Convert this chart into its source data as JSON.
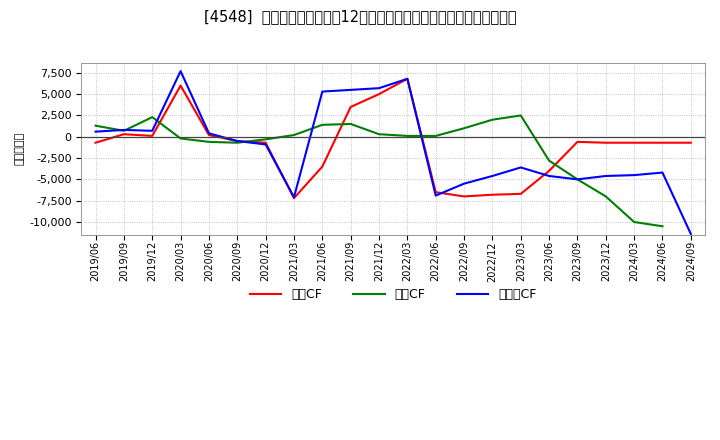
{
  "title": "[4548]  キャッシュフローの12か月移動合計の対前年同期増減額の推移",
  "ylabel": "（百万円）",
  "background_color": "#ffffff",
  "plot_bg_color": "#ffffff",
  "x_labels": [
    "2019/06",
    "2019/09",
    "2019/12",
    "2020/03",
    "2020/06",
    "2020/09",
    "2020/12",
    "2021/03",
    "2021/06",
    "2021/09",
    "2021/12",
    "2022/03",
    "2022/06",
    "2022/09",
    "2022/12",
    "2023/03",
    "2023/06",
    "2023/09",
    "2023/12",
    "2024/03",
    "2024/06",
    "2024/09"
  ],
  "op_cf": [
    -700,
    300,
    100,
    6000,
    200,
    -500,
    -700,
    -7200,
    -3500,
    3500,
    5000,
    6800,
    -6500,
    -7000,
    -6800,
    -6700,
    -4000,
    -600,
    -700,
    -700,
    -700,
    -700
  ],
  "inv_cf": [
    1300,
    700,
    2300,
    -200,
    -600,
    -700,
    -300,
    200,
    1400,
    1500,
    300,
    100,
    100,
    1000,
    2000,
    2500,
    -2800,
    -5000,
    -7000,
    -10000,
    -10500,
    null
  ],
  "fr_cf": [
    600,
    800,
    700,
    7700,
    400,
    -500,
    -900,
    -7100,
    5300,
    5500,
    5700,
    6800,
    -6900,
    -5500,
    -4600,
    -3600,
    -4600,
    -5000,
    -4600,
    -4500,
    -4200,
    -11400
  ],
  "ylim": [
    -11500,
    8700
  ],
  "yticks": [
    -10000,
    -7500,
    -5000,
    -2500,
    0,
    2500,
    5000,
    7500
  ],
  "line_colors": {
    "operating": "#ff0000",
    "investing": "#008000",
    "free": "#0000ff"
  },
  "legend_labels": {
    "operating": "営業CF",
    "investing": "投資CF",
    "free": "フリーCF"
  }
}
